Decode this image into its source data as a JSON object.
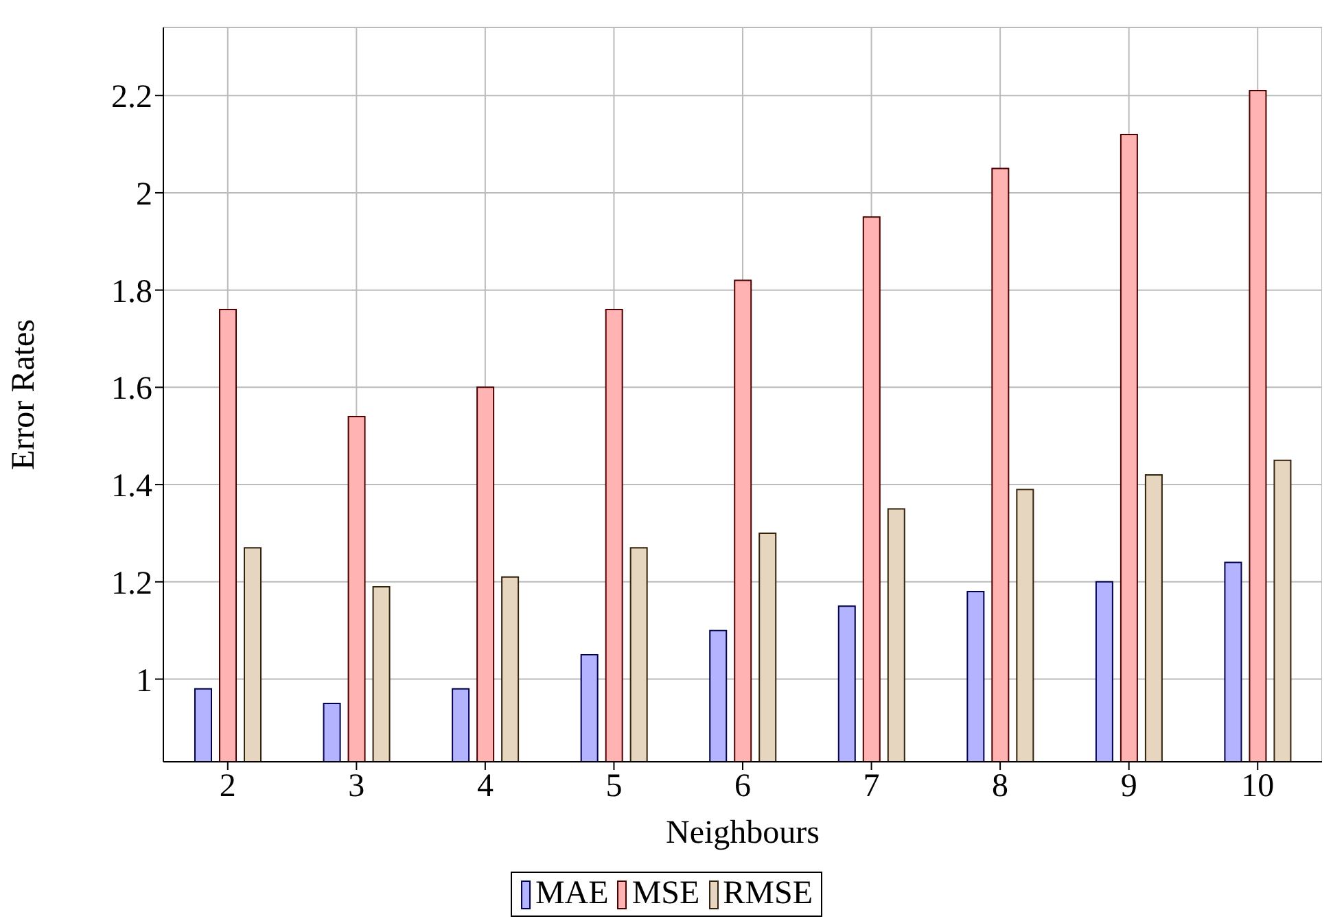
{
  "chart_data": {
    "type": "bar",
    "xlabel": "Neighbours",
    "ylabel": "Error Rates",
    "categories": [
      "2",
      "3",
      "4",
      "5",
      "6",
      "7",
      "8",
      "9",
      "10"
    ],
    "series": [
      {
        "name": "MAE",
        "color": "#b3b3ff",
        "values": [
          0.98,
          0.95,
          0.98,
          1.05,
          1.1,
          1.15,
          1.18,
          1.2,
          1.24
        ]
      },
      {
        "name": "MSE",
        "color": "#ffb3b3",
        "values": [
          1.76,
          1.54,
          1.6,
          1.76,
          1.82,
          1.95,
          2.05,
          2.12,
          2.21
        ]
      },
      {
        "name": "RMSE",
        "color": "#e6d5bf",
        "values": [
          1.27,
          1.19,
          1.21,
          1.27,
          1.3,
          1.35,
          1.39,
          1.42,
          1.45
        ]
      }
    ],
    "ylim": [
      0.83,
      2.34
    ],
    "yticks": [
      1,
      1.2,
      1.4,
      1.6,
      1.8,
      2,
      2.2
    ],
    "grid": true,
    "legend": "bottom"
  }
}
